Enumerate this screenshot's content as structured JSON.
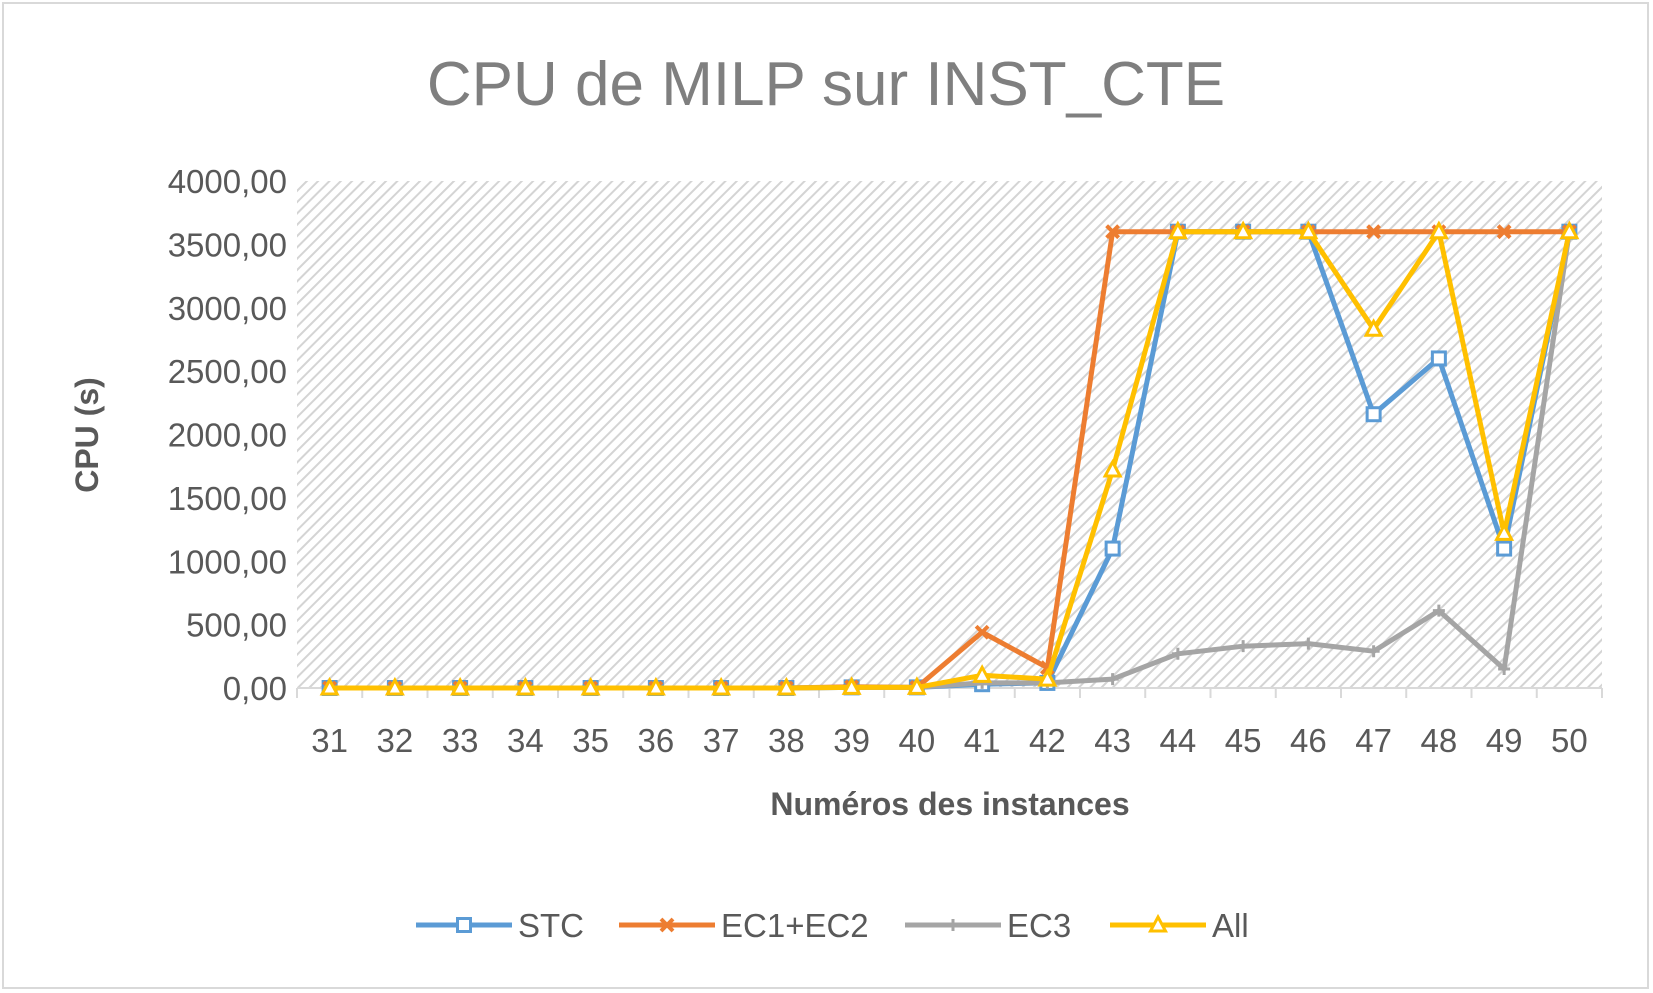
{
  "chart_data": {
    "type": "line",
    "title": "CPU de MILP sur INST_CTE",
    "xlabel": "Numéros des instances",
    "ylabel": "CPU (s)",
    "categories": [
      "31",
      "32",
      "33",
      "34",
      "35",
      "36",
      "37",
      "38",
      "39",
      "40",
      "41",
      "42",
      "43",
      "44",
      "45",
      "46",
      "47",
      "48",
      "49",
      "50"
    ],
    "ylim": [
      0,
      4000
    ],
    "yticks": [
      0,
      500,
      1000,
      1500,
      2000,
      2500,
      3000,
      3500,
      4000
    ],
    "ytick_labels": [
      "0,00",
      "500,00",
      "1000,00",
      "1500,00",
      "2000,00",
      "2500,00",
      "3000,00",
      "3500,00",
      "4000,00"
    ],
    "grid": false,
    "plot_background": "diagonal hatch",
    "legend_position": "bottom",
    "series": [
      {
        "name": "STC",
        "color": "#5b9bd5",
        "marker": "square",
        "values": [
          0,
          0,
          0,
          0,
          0,
          0,
          0,
          0,
          5,
          5,
          30,
          40,
          1100,
          3600,
          3600,
          3600,
          2160,
          2600,
          1100,
          3600
        ]
      },
      {
        "name": "EC1+EC2",
        "color": "#ed7d31",
        "marker": "x",
        "values": [
          0,
          0,
          0,
          0,
          0,
          0,
          0,
          0,
          10,
          5,
          440,
          160,
          3600,
          3600,
          3600,
          3600,
          3600,
          3600,
          3600,
          3600
        ]
      },
      {
        "name": "EC3",
        "color": "#a5a5a5",
        "marker": "plus",
        "values": [
          0,
          0,
          0,
          0,
          0,
          0,
          0,
          0,
          5,
          5,
          40,
          40,
          70,
          270,
          330,
          350,
          290,
          610,
          150,
          3600
        ]
      },
      {
        "name": "All",
        "color": "#ffc000",
        "marker": "triangle",
        "values": [
          0,
          0,
          0,
          0,
          0,
          0,
          0,
          0,
          5,
          5,
          100,
          70,
          1720,
          3600,
          3600,
          3600,
          2830,
          3600,
          1220,
          3600
        ]
      }
    ]
  }
}
